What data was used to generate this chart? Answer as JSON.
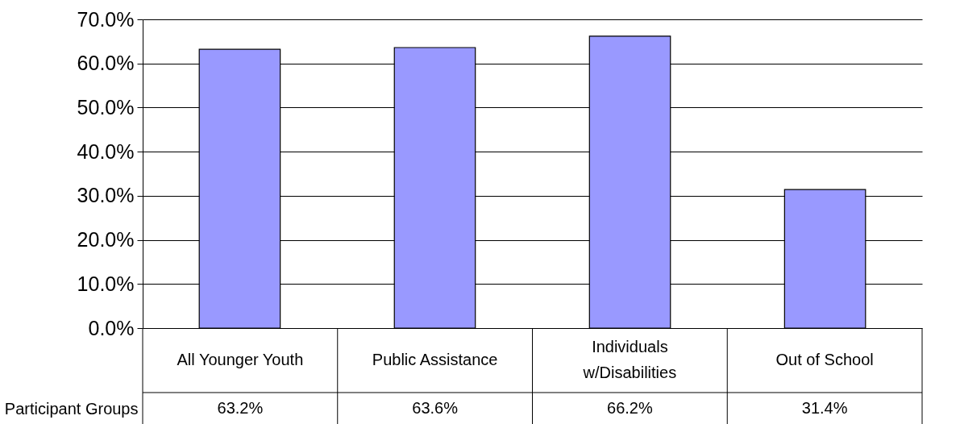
{
  "chart_data": {
    "type": "bar",
    "categories": [
      "All Younger Youth",
      "Public Assistance",
      "Individuals w/Disabilities",
      "Out of School"
    ],
    "series": [
      {
        "name": "Participant Groups",
        "color": "#9999ff",
        "values": [
          63.2,
          63.6,
          66.2,
          31.4
        ],
        "value_labels": [
          "63.2%",
          "63.6%",
          "66.2%",
          "31.4%"
        ]
      }
    ],
    "ylim": [
      0,
      70
    ],
    "yticks": [
      {
        "value": 0,
        "label": "0.0%"
      },
      {
        "value": 10,
        "label": "10.0%"
      },
      {
        "value": 20,
        "label": "20.0%"
      },
      {
        "value": 30,
        "label": "30.0%"
      },
      {
        "value": 40,
        "label": "40.0%"
      },
      {
        "value": 50,
        "label": "50.0%"
      },
      {
        "value": 60,
        "label": "60.0%"
      },
      {
        "value": 70,
        "label": "70.0%"
      }
    ],
    "grid": "y",
    "legend": false
  }
}
